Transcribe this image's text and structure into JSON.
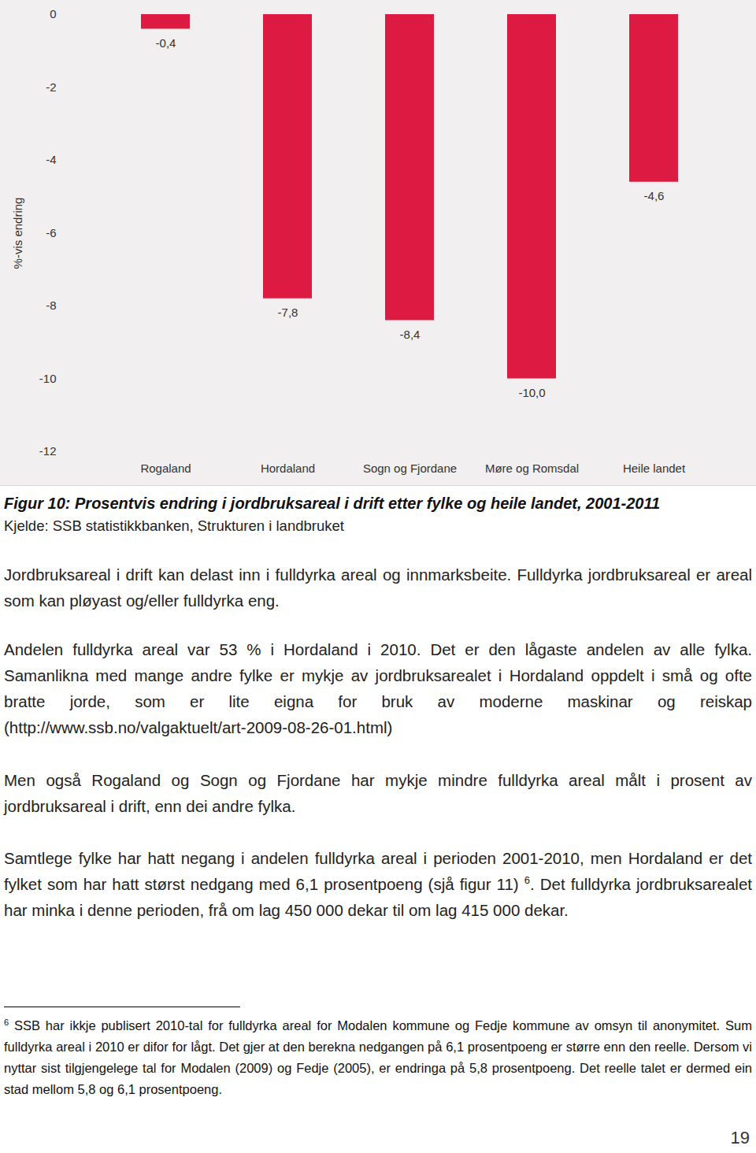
{
  "chart_data": {
    "type": "bar",
    "ylabel": "%-vis endring",
    "categories": [
      "Rogaland",
      "Hordaland",
      "Sogn og Fjordane",
      "Møre og Romsdal",
      "Heile landet"
    ],
    "values": [
      -0.4,
      -7.8,
      -8.4,
      -10.0,
      -4.6
    ],
    "value_labels": [
      "-0,4",
      "-7,8",
      "-8,4",
      "-10,0",
      "-4,6"
    ],
    "data_labels": true,
    "color": "#dc1a42",
    "ylim": [
      -12,
      0
    ],
    "yticks": [
      0,
      -2,
      -4,
      -6,
      -8,
      -10,
      -12
    ],
    "grid": false
  },
  "caption": {
    "title": "Figur 10: Prosentvis endring i jordbruksareal i drift etter fylke og heile landet, 2001-2011",
    "source": "Kjelde: SSB statistikkbanken, Strukturen i landbruket"
  },
  "paragraphs": [
    {
      "text": "Jordbruksareal i drift kan delast inn i fulldyrka areal og innmarksbeite. Fulldyrka jordbruksareal er areal som kan pløyast og/eller fulldyrka eng."
    },
    {
      "text": "Andelen fulldyrka areal var 53 % i Hordaland i 2010. Det er den lågaste andelen av alle fylka. Samanlikna med mange andre fylke er mykje av jordbruksarealet i Hordaland oppdelt i små og ofte bratte jorde, som er lite eigna for bruk av moderne maskinar og reiskap (http://www.ssb.no/valgaktuelt/art-2009-08-26-01.html)"
    },
    {
      "text": "Men også Rogaland og Sogn og Fjordane har mykje mindre fulldyrka areal målt i prosent av jordbruksareal i drift, enn dei andre fylka."
    },
    {
      "text": "Samtlege fylke har hatt negang i andelen fulldyrka areal i perioden 2001-2010, men Hordaland er det fylket som har hatt størst nedgang med 6,1 prosentpoeng (sjå figur 11)",
      "footnote_ref": "6",
      "text_after": ". Det fulldyrka jordbruksarealet har minka i denne perioden, frå om lag 450 000 dekar til om lag 415 000 dekar."
    }
  ],
  "footnote": {
    "number": "6",
    "text": "SSB har ikkje publisert 2010-tal for fulldyrka areal for Modalen kommune og Fedje kommune av omsyn til anonymitet. Sum fulldyrka areal i 2010 er difor for lågt. Det gjer at den berekna nedgangen på 6,1 prosentpoeng er større enn den reelle. Dersom vi nyttar sist tilgjengelege tal for Modalen (2009) og Fedje (2005), er endringa på 5,8 prosentpoeng. Det reelle talet er dermed ein stad mellom 5,8 og 6,1 prosentpoeng."
  },
  "page_number": "19"
}
